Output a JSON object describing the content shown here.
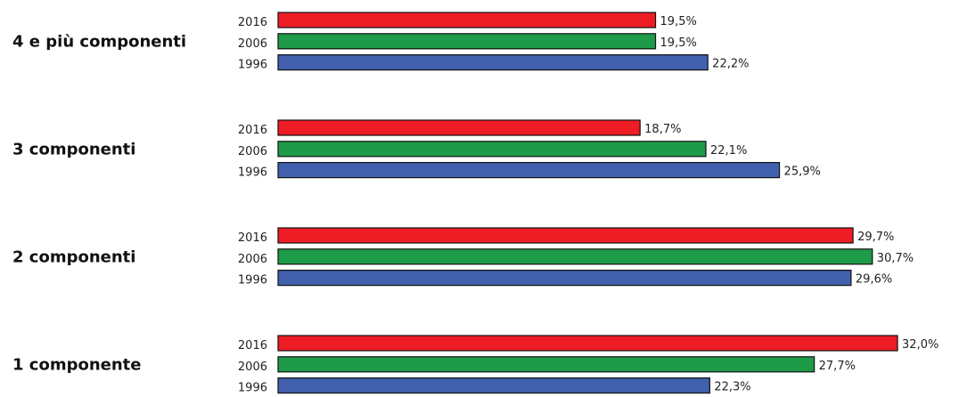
{
  "chart_data": {
    "type": "bar",
    "orientation": "horizontal",
    "title": "",
    "xlabel": "",
    "ylabel": "",
    "grid": false,
    "legend": "none",
    "value_format": "percent-comma-1-decimal",
    "categories": [
      "4 e più componenti",
      "3 componenti",
      "2 componenti",
      "1 componente"
    ],
    "series": [
      {
        "name": "2016",
        "color": "#ee1c25",
        "values": [
          19.5,
          18.7,
          29.7,
          32.0
        ],
        "value_labels": [
          "19,5%",
          "18,7%",
          "29,7%",
          "32,0%"
        ]
      },
      {
        "name": "2006",
        "color": "#1e9b48",
        "values": [
          19.5,
          22.1,
          30.7,
          27.7
        ],
        "value_labels": [
          "19,5%",
          "22,1%",
          "30,7%",
          "27,7%"
        ]
      },
      {
        "name": "1996",
        "color": "#4160ad",
        "values": [
          22.2,
          25.9,
          29.6,
          22.3
        ],
        "value_labels": [
          "22,2%",
          "25,9%",
          "29,6%",
          "22,3%"
        ]
      }
    ]
  }
}
